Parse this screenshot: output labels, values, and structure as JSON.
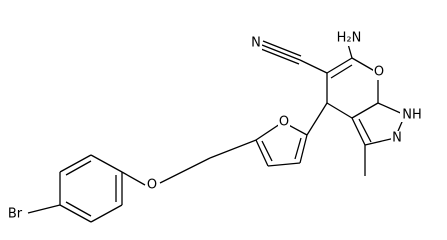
{
  "molecule": {
    "labels": {
      "amino": "H₂N",
      "nitrile_n": "N",
      "pyran_o": "O",
      "pyrazole_nh": "NH",
      "pyrazole_n": "N",
      "furan_o": "O",
      "ether_o": "O",
      "bromine": "Br"
    }
  }
}
